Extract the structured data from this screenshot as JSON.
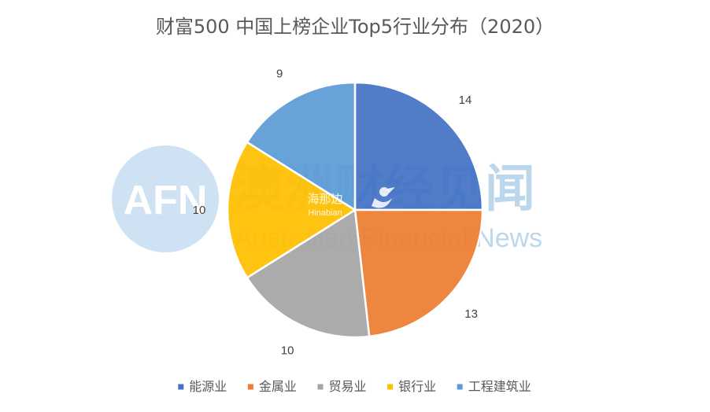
{
  "chart_data": {
    "type": "pie",
    "title": "财富500 中国上榜企业Top5行业分布（2020）",
    "categories": [
      "能源业",
      "金属业",
      "贸易业",
      "银行业",
      "工程建筑业"
    ],
    "values": [
      14,
      13,
      10,
      10,
      9
    ],
    "colors": [
      "#4472c4",
      "#ed7d31",
      "#a5a5a5",
      "#ffc000",
      "#5b9bd5"
    ],
    "legend_position": "bottom",
    "start_angle_deg": 0,
    "direction": "clockwise",
    "data_labels": "outside-end"
  },
  "watermark": {
    "logo_text": "AFN",
    "brand_cn": "澳洲财经见闻",
    "brand_en": "Australian Financial News",
    "sub_brand_cn": "海那边",
    "sub_brand_en": "Hinabian"
  }
}
